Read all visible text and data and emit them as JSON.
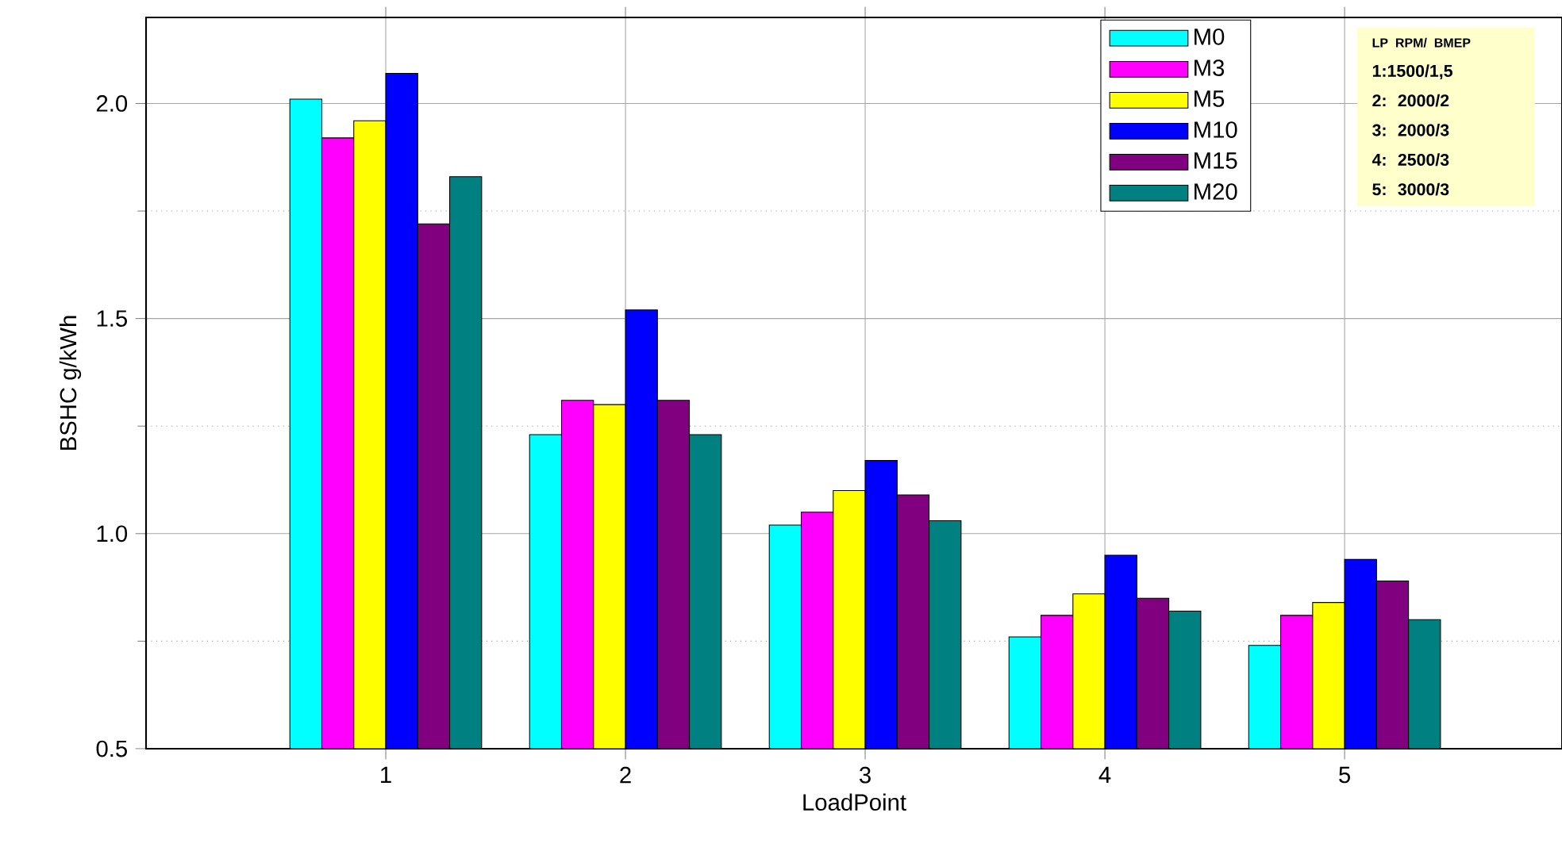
{
  "chart_data": {
    "type": "bar",
    "xlabel": "LoadPoint",
    "ylabel": "BSHC g/kWh",
    "categories": [
      "1",
      "2",
      "3",
      "4",
      "5"
    ],
    "series": [
      {
        "name": "M0",
        "color": "#00ffff",
        "values": [
          2.01,
          1.23,
          1.02,
          0.76,
          0.74
        ]
      },
      {
        "name": "M3",
        "color": "#ff00ff",
        "values": [
          1.92,
          1.31,
          1.05,
          0.81,
          0.81
        ]
      },
      {
        "name": "M5",
        "color": "#ffff00",
        "values": [
          1.96,
          1.3,
          1.1,
          0.86,
          0.84
        ]
      },
      {
        "name": "M10",
        "color": "#0000ff",
        "values": [
          2.07,
          1.52,
          1.17,
          0.95,
          0.94
        ]
      },
      {
        "name": "M15",
        "color": "#800080",
        "values": [
          1.72,
          1.31,
          1.09,
          0.85,
          0.89
        ]
      },
      {
        "name": "M20",
        "color": "#008080",
        "values": [
          1.83,
          1.23,
          1.03,
          0.82,
          0.8
        ]
      }
    ],
    "ylim": [
      0.5,
      2.2
    ],
    "yticks": [
      {
        "value": 0.5,
        "label": "0.5"
      },
      {
        "value": 1.0,
        "label": "1.0"
      },
      {
        "value": 1.5,
        "label": "1.5"
      },
      {
        "value": 2.0,
        "label": "2.0"
      }
    ],
    "grid": true,
    "legend": "top right",
    "annotations": [
      "LP  RPM/ BMEP",
      "1:1500/1,5",
      "2: 2000/2",
      "3: 2000/3",
      "4: 2500/3",
      "5: 3000/3"
    ]
  }
}
